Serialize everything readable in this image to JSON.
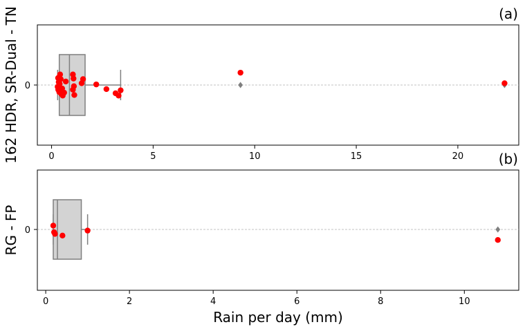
{
  "chart_data": [
    {
      "type": "box",
      "panel_label": "(a)",
      "ylabel": "162 HDR, SR-Dual - TN",
      "category_tick": "0",
      "xlim": [
        -0.7,
        23.0
      ],
      "xticks": [
        0,
        5,
        10,
        15,
        20
      ],
      "grid": "horizontal dashed at 0",
      "box": {
        "q1": 0.38,
        "median": 0.88,
        "q3": 1.65,
        "whisker_low": 0.3,
        "whisker_high": 3.4
      },
      "outliers": [
        9.3,
        22.3
      ],
      "points": [
        {
          "x": 0.32,
          "y": 0.12
        },
        {
          "x": 0.35,
          "y": 0.05
        },
        {
          "x": 0.3,
          "y": -0.03
        },
        {
          "x": 0.33,
          "y": -0.08
        },
        {
          "x": 0.38,
          "y": -0.12
        },
        {
          "x": 0.42,
          "y": 0.18
        },
        {
          "x": 0.45,
          "y": 0.1
        },
        {
          "x": 0.4,
          "y": 0.02
        },
        {
          "x": 0.48,
          "y": -0.15
        },
        {
          "x": 0.52,
          "y": -0.06
        },
        {
          "x": 0.55,
          "y": -0.18
        },
        {
          "x": 0.62,
          "y": -0.13
        },
        {
          "x": 0.7,
          "y": 0.06
        },
        {
          "x": 1.05,
          "y": 0.18
        },
        {
          "x": 1.08,
          "y": 0.11
        },
        {
          "x": 1.1,
          "y": -0.02
        },
        {
          "x": 1.05,
          "y": -0.08
        },
        {
          "x": 1.12,
          "y": -0.17
        },
        {
          "x": 1.48,
          "y": 0.03
        },
        {
          "x": 1.55,
          "y": 0.1
        },
        {
          "x": 2.2,
          "y": 0.01
        },
        {
          "x": 2.7,
          "y": -0.07
        },
        {
          "x": 3.15,
          "y": -0.14
        },
        {
          "x": 3.3,
          "y": -0.18
        },
        {
          "x": 3.4,
          "y": -0.09
        },
        {
          "x": 9.3,
          "y": 0.21
        },
        {
          "x": 22.3,
          "y": 0.03
        }
      ]
    },
    {
      "type": "box",
      "panel_label": "(b)",
      "ylabel": "RG - FP",
      "xlabel": "Rain per day (mm)",
      "category_tick": "0",
      "xlim": [
        -0.2,
        11.3
      ],
      "xticks": [
        0,
        2,
        4,
        6,
        8,
        10
      ],
      "grid": "horizontal dashed at 0",
      "box": {
        "q1": 0.18,
        "median": 0.28,
        "q3": 0.85,
        "whisker_low": 0.18,
        "whisker_high": 1.0
      },
      "outliers": [
        10.8
      ],
      "points": [
        {
          "x": 0.18,
          "y": 0.07
        },
        {
          "x": 0.2,
          "y": -0.05
        },
        {
          "x": 0.22,
          "y": -0.08
        },
        {
          "x": 0.4,
          "y": -0.11
        },
        {
          "x": 1.0,
          "y": -0.02
        },
        {
          "x": 10.8,
          "y": -0.19
        }
      ]
    }
  ]
}
